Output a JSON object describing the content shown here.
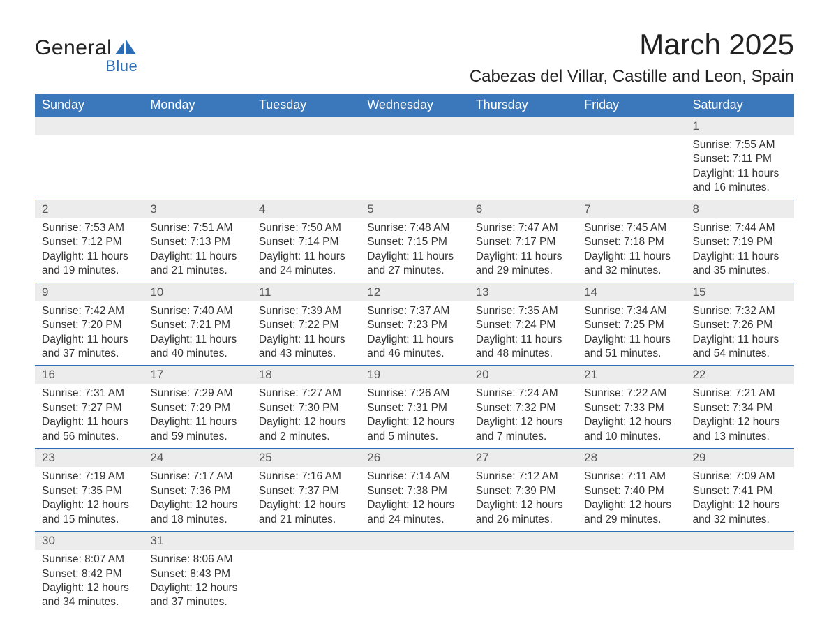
{
  "logo": {
    "text1": "General",
    "text2": "Blue",
    "shape_color": "#2d6db3"
  },
  "title": "March 2025",
  "location": "Cabezas del Villar, Castille and Leon, Spain",
  "colors": {
    "header_bg": "#3b78bb",
    "header_text": "#ffffff",
    "daynum_bg": "#ececec",
    "body_text": "#333333",
    "rule": "#2d6db3"
  },
  "typography": {
    "title_fontsize": 42,
    "location_fontsize": 24,
    "dayhead_fontsize": 18,
    "body_fontsize": 15.5
  },
  "day_headers": [
    "Sunday",
    "Monday",
    "Tuesday",
    "Wednesday",
    "Thursday",
    "Friday",
    "Saturday"
  ],
  "weeks": [
    [
      {
        "n": "",
        "sr": "",
        "ss": "",
        "dl": ""
      },
      {
        "n": "",
        "sr": "",
        "ss": "",
        "dl": ""
      },
      {
        "n": "",
        "sr": "",
        "ss": "",
        "dl": ""
      },
      {
        "n": "",
        "sr": "",
        "ss": "",
        "dl": ""
      },
      {
        "n": "",
        "sr": "",
        "ss": "",
        "dl": ""
      },
      {
        "n": "",
        "sr": "",
        "ss": "",
        "dl": ""
      },
      {
        "n": "1",
        "sr": "Sunrise: 7:55 AM",
        "ss": "Sunset: 7:11 PM",
        "dl": "Daylight: 11 hours and 16 minutes."
      }
    ],
    [
      {
        "n": "2",
        "sr": "Sunrise: 7:53 AM",
        "ss": "Sunset: 7:12 PM",
        "dl": "Daylight: 11 hours and 19 minutes."
      },
      {
        "n": "3",
        "sr": "Sunrise: 7:51 AM",
        "ss": "Sunset: 7:13 PM",
        "dl": "Daylight: 11 hours and 21 minutes."
      },
      {
        "n": "4",
        "sr": "Sunrise: 7:50 AM",
        "ss": "Sunset: 7:14 PM",
        "dl": "Daylight: 11 hours and 24 minutes."
      },
      {
        "n": "5",
        "sr": "Sunrise: 7:48 AM",
        "ss": "Sunset: 7:15 PM",
        "dl": "Daylight: 11 hours and 27 minutes."
      },
      {
        "n": "6",
        "sr": "Sunrise: 7:47 AM",
        "ss": "Sunset: 7:17 PM",
        "dl": "Daylight: 11 hours and 29 minutes."
      },
      {
        "n": "7",
        "sr": "Sunrise: 7:45 AM",
        "ss": "Sunset: 7:18 PM",
        "dl": "Daylight: 11 hours and 32 minutes."
      },
      {
        "n": "8",
        "sr": "Sunrise: 7:44 AM",
        "ss": "Sunset: 7:19 PM",
        "dl": "Daylight: 11 hours and 35 minutes."
      }
    ],
    [
      {
        "n": "9",
        "sr": "Sunrise: 7:42 AM",
        "ss": "Sunset: 7:20 PM",
        "dl": "Daylight: 11 hours and 37 minutes."
      },
      {
        "n": "10",
        "sr": "Sunrise: 7:40 AM",
        "ss": "Sunset: 7:21 PM",
        "dl": "Daylight: 11 hours and 40 minutes."
      },
      {
        "n": "11",
        "sr": "Sunrise: 7:39 AM",
        "ss": "Sunset: 7:22 PM",
        "dl": "Daylight: 11 hours and 43 minutes."
      },
      {
        "n": "12",
        "sr": "Sunrise: 7:37 AM",
        "ss": "Sunset: 7:23 PM",
        "dl": "Daylight: 11 hours and 46 minutes."
      },
      {
        "n": "13",
        "sr": "Sunrise: 7:35 AM",
        "ss": "Sunset: 7:24 PM",
        "dl": "Daylight: 11 hours and 48 minutes."
      },
      {
        "n": "14",
        "sr": "Sunrise: 7:34 AM",
        "ss": "Sunset: 7:25 PM",
        "dl": "Daylight: 11 hours and 51 minutes."
      },
      {
        "n": "15",
        "sr": "Sunrise: 7:32 AM",
        "ss": "Sunset: 7:26 PM",
        "dl": "Daylight: 11 hours and 54 minutes."
      }
    ],
    [
      {
        "n": "16",
        "sr": "Sunrise: 7:31 AM",
        "ss": "Sunset: 7:27 PM",
        "dl": "Daylight: 11 hours and 56 minutes."
      },
      {
        "n": "17",
        "sr": "Sunrise: 7:29 AM",
        "ss": "Sunset: 7:29 PM",
        "dl": "Daylight: 11 hours and 59 minutes."
      },
      {
        "n": "18",
        "sr": "Sunrise: 7:27 AM",
        "ss": "Sunset: 7:30 PM",
        "dl": "Daylight: 12 hours and 2 minutes."
      },
      {
        "n": "19",
        "sr": "Sunrise: 7:26 AM",
        "ss": "Sunset: 7:31 PM",
        "dl": "Daylight: 12 hours and 5 minutes."
      },
      {
        "n": "20",
        "sr": "Sunrise: 7:24 AM",
        "ss": "Sunset: 7:32 PM",
        "dl": "Daylight: 12 hours and 7 minutes."
      },
      {
        "n": "21",
        "sr": "Sunrise: 7:22 AM",
        "ss": "Sunset: 7:33 PM",
        "dl": "Daylight: 12 hours and 10 minutes."
      },
      {
        "n": "22",
        "sr": "Sunrise: 7:21 AM",
        "ss": "Sunset: 7:34 PM",
        "dl": "Daylight: 12 hours and 13 minutes."
      }
    ],
    [
      {
        "n": "23",
        "sr": "Sunrise: 7:19 AM",
        "ss": "Sunset: 7:35 PM",
        "dl": "Daylight: 12 hours and 15 minutes."
      },
      {
        "n": "24",
        "sr": "Sunrise: 7:17 AM",
        "ss": "Sunset: 7:36 PM",
        "dl": "Daylight: 12 hours and 18 minutes."
      },
      {
        "n": "25",
        "sr": "Sunrise: 7:16 AM",
        "ss": "Sunset: 7:37 PM",
        "dl": "Daylight: 12 hours and 21 minutes."
      },
      {
        "n": "26",
        "sr": "Sunrise: 7:14 AM",
        "ss": "Sunset: 7:38 PM",
        "dl": "Daylight: 12 hours and 24 minutes."
      },
      {
        "n": "27",
        "sr": "Sunrise: 7:12 AM",
        "ss": "Sunset: 7:39 PM",
        "dl": "Daylight: 12 hours and 26 minutes."
      },
      {
        "n": "28",
        "sr": "Sunrise: 7:11 AM",
        "ss": "Sunset: 7:40 PM",
        "dl": "Daylight: 12 hours and 29 minutes."
      },
      {
        "n": "29",
        "sr": "Sunrise: 7:09 AM",
        "ss": "Sunset: 7:41 PM",
        "dl": "Daylight: 12 hours and 32 minutes."
      }
    ],
    [
      {
        "n": "30",
        "sr": "Sunrise: 8:07 AM",
        "ss": "Sunset: 8:42 PM",
        "dl": "Daylight: 12 hours and 34 minutes."
      },
      {
        "n": "31",
        "sr": "Sunrise: 8:06 AM",
        "ss": "Sunset: 8:43 PM",
        "dl": "Daylight: 12 hours and 37 minutes."
      },
      {
        "n": "",
        "sr": "",
        "ss": "",
        "dl": ""
      },
      {
        "n": "",
        "sr": "",
        "ss": "",
        "dl": ""
      },
      {
        "n": "",
        "sr": "",
        "ss": "",
        "dl": ""
      },
      {
        "n": "",
        "sr": "",
        "ss": "",
        "dl": ""
      },
      {
        "n": "",
        "sr": "",
        "ss": "",
        "dl": ""
      }
    ]
  ]
}
